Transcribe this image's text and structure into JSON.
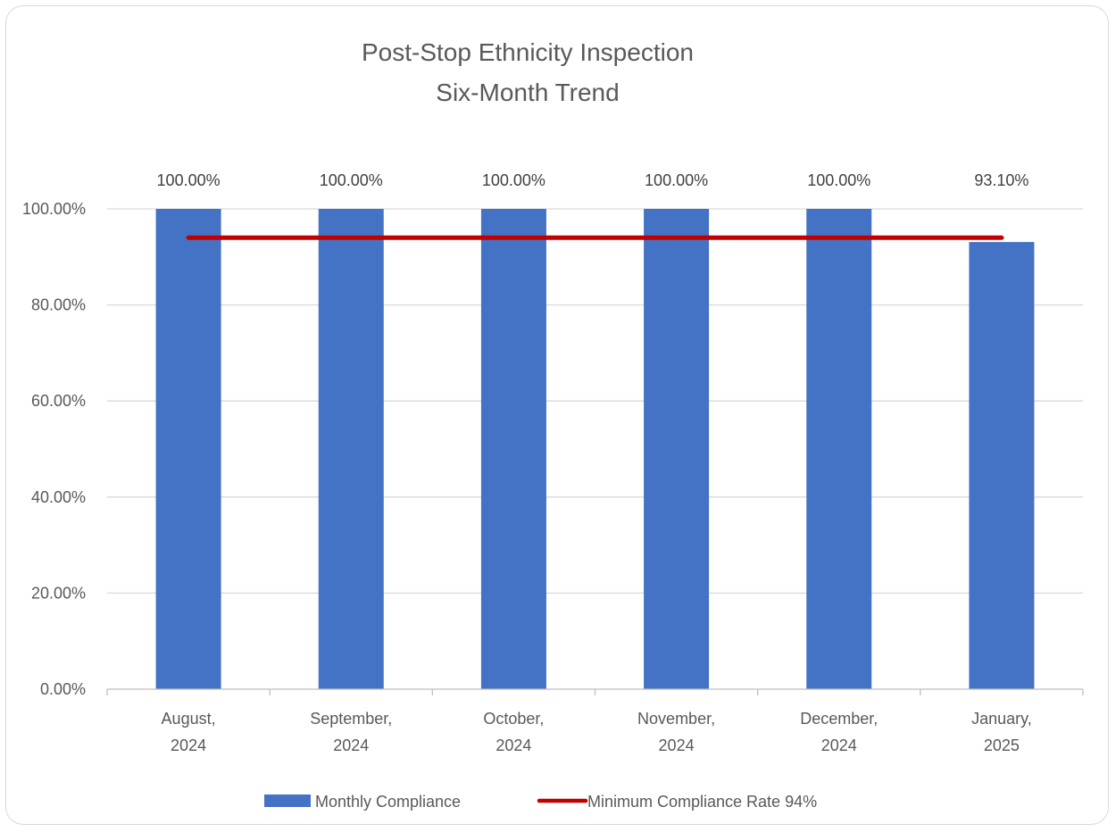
{
  "chart_data": {
    "type": "bar",
    "title_lines": [
      "Post-Stop Ethnicity Inspection",
      "Six-Month Trend"
    ],
    "categories": [
      [
        "August,",
        "2024"
      ],
      [
        "September,",
        "2024"
      ],
      [
        "October,",
        "2024"
      ],
      [
        "November,",
        "2024"
      ],
      [
        "December,",
        "2024"
      ],
      [
        "January,",
        "2025"
      ]
    ],
    "series": [
      {
        "name": "Monthly Compliance",
        "kind": "bar",
        "color": "#4472c4",
        "values": [
          100.0,
          100.0,
          100.0,
          100.0,
          100.0,
          93.1
        ],
        "labels": [
          "100.00%",
          "100.00%",
          "100.00%",
          "100.00%",
          "100.00%",
          "93.10%"
        ]
      },
      {
        "name": "Minimum Compliance Rate 94%",
        "kind": "line",
        "color": "#c00000",
        "values": [
          94,
          94,
          94,
          94,
          94,
          94
        ]
      }
    ],
    "ylim": [
      0,
      100
    ],
    "yticks": [
      "0.00%",
      "20.00%",
      "40.00%",
      "60.00%",
      "80.00%",
      "100.00%"
    ],
    "grid": true,
    "legend_position": "bottom"
  }
}
